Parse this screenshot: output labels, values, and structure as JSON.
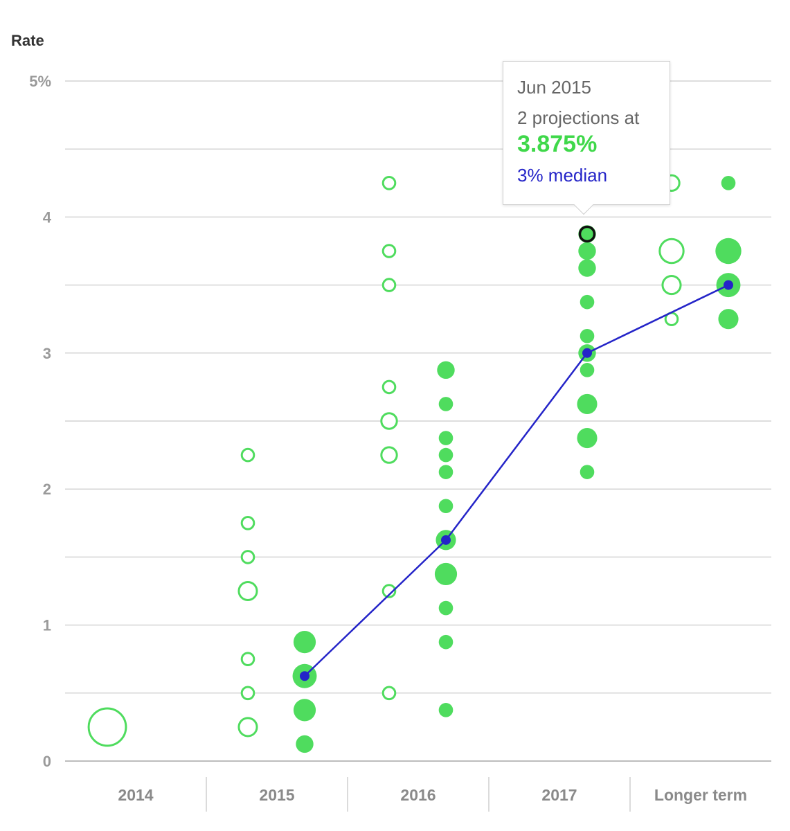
{
  "chart_data": {
    "type": "scatter",
    "ylabel": "Rate",
    "ylim": [
      0,
      5
    ],
    "yticks": [
      {
        "value": 0,
        "label": "0"
      },
      {
        "value": 1,
        "label": "1"
      },
      {
        "value": 2,
        "label": "2"
      },
      {
        "value": 3,
        "label": "3"
      },
      {
        "value": 4,
        "label": "4"
      },
      {
        "value": 5,
        "label": "5%"
      }
    ],
    "gridlines": [
      0.5,
      1,
      1.5,
      2,
      2.5,
      3,
      3.5,
      4,
      4.5,
      5
    ],
    "categories": [
      "2014",
      "2015",
      "2016",
      "2017",
      "Longer term"
    ],
    "colors": {
      "dot": "#4fdc5e",
      "median": "#2424c8",
      "highlight_stroke": "#111111"
    },
    "series": [
      {
        "style": "open",
        "points": [
          {
            "category": "2014",
            "y": 0.25,
            "count": 17
          },
          {
            "category": "2015",
            "y": 2.25,
            "count": 1
          },
          {
            "category": "2015",
            "y": 1.75,
            "count": 1
          },
          {
            "category": "2015",
            "y": 1.5,
            "count": 1
          },
          {
            "category": "2015",
            "y": 1.25,
            "count": 3
          },
          {
            "category": "2015",
            "y": 0.75,
            "count": 1
          },
          {
            "category": "2015",
            "y": 0.5,
            "count": 1
          },
          {
            "category": "2015",
            "y": 0.25,
            "count": 3
          },
          {
            "category": "2016",
            "y": 4.25,
            "count": 1
          },
          {
            "category": "2016",
            "y": 3.75,
            "count": 1
          },
          {
            "category": "2016",
            "y": 3.5,
            "count": 1
          },
          {
            "category": "2016",
            "y": 2.75,
            "count": 1
          },
          {
            "category": "2016",
            "y": 2.5,
            "count": 2
          },
          {
            "category": "2016",
            "y": 2.25,
            "count": 2
          },
          {
            "category": "2016",
            "y": 1.25,
            "count": 1
          },
          {
            "category": "2016",
            "y": 0.5,
            "count": 1
          },
          {
            "category": "Longer term",
            "y": 4.25,
            "count": 2
          },
          {
            "category": "Longer term",
            "y": 3.75,
            "count": 6
          },
          {
            "category": "Longer term",
            "y": 3.5,
            "count": 3
          },
          {
            "category": "Longer term",
            "y": 3.25,
            "count": 1
          }
        ]
      },
      {
        "style": "filled",
        "points": [
          {
            "category": "2015",
            "y": 0.875,
            "count": 4
          },
          {
            "category": "2015",
            "y": 0.625,
            "count": 5
          },
          {
            "category": "2015",
            "y": 0.375,
            "count": 4
          },
          {
            "category": "2015",
            "y": 0.125,
            "count": 2
          },
          {
            "category": "2016",
            "y": 2.875,
            "count": 2
          },
          {
            "category": "2016",
            "y": 2.625,
            "count": 1
          },
          {
            "category": "2016",
            "y": 2.375,
            "count": 1
          },
          {
            "category": "2016",
            "y": 2.25,
            "count": 1
          },
          {
            "category": "2016",
            "y": 2.125,
            "count": 1
          },
          {
            "category": "2016",
            "y": 1.875,
            "count": 1
          },
          {
            "category": "2016",
            "y": 1.625,
            "count": 3
          },
          {
            "category": "2016",
            "y": 1.375,
            "count": 4
          },
          {
            "category": "2016",
            "y": 1.125,
            "count": 1
          },
          {
            "category": "2016",
            "y": 0.875,
            "count": 1
          },
          {
            "category": "2016",
            "y": 0.375,
            "count": 1
          },
          {
            "category": "2017",
            "y": 3.875,
            "count": 2
          },
          {
            "category": "2017",
            "y": 3.75,
            "count": 2
          },
          {
            "category": "2017",
            "y": 3.625,
            "count": 2
          },
          {
            "category": "2017",
            "y": 3.375,
            "count": 1
          },
          {
            "category": "2017",
            "y": 3.125,
            "count": 1
          },
          {
            "category": "2017",
            "y": 3.0,
            "count": 2
          },
          {
            "category": "2017",
            "y": 2.875,
            "count": 1
          },
          {
            "category": "2017",
            "y": 2.625,
            "count": 3
          },
          {
            "category": "2017",
            "y": 2.375,
            "count": 3
          },
          {
            "category": "2017",
            "y": 2.125,
            "count": 1
          },
          {
            "category": "Longer term",
            "y": 4.25,
            "count": 1
          },
          {
            "category": "Longer term",
            "y": 3.75,
            "count": 6
          },
          {
            "category": "Longer term",
            "y": 3.5,
            "count": 5
          },
          {
            "category": "Longer term",
            "y": 3.25,
            "count": 3
          }
        ]
      }
    ],
    "median": [
      {
        "category": "2015",
        "y": 0.625
      },
      {
        "category": "2016",
        "y": 1.625
      },
      {
        "category": "2017",
        "y": 3.0
      },
      {
        "category": "Longer term",
        "y": 3.5
      }
    ],
    "highlight": {
      "category": "2017",
      "y": 3.875
    },
    "tooltip": {
      "date": "Jun 2015",
      "count_text": "2 projections at",
      "rate": "3.875%",
      "median_text": "3% median"
    }
  }
}
